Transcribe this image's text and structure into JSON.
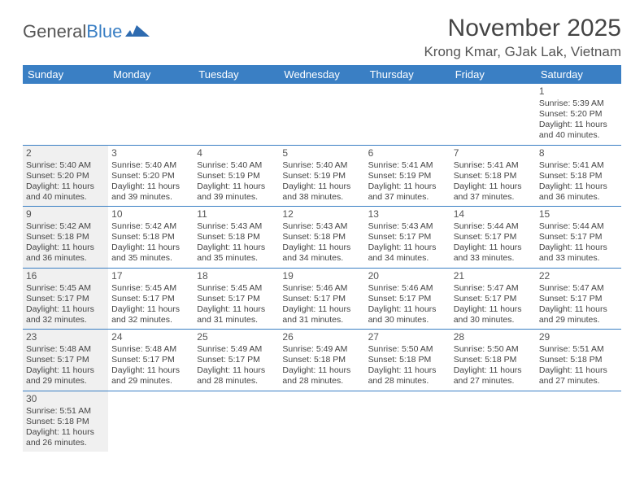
{
  "brand": {
    "part1": "General",
    "part2": "Blue"
  },
  "title": "November 2025",
  "location": "Krong Kmar, GJak Lak, Vietnam",
  "colors": {
    "header_bg": "#3a7fc4",
    "shaded_bg": "#f0f0f0",
    "text": "#444444",
    "white": "#ffffff"
  },
  "dayNames": [
    "Sunday",
    "Monday",
    "Tuesday",
    "Wednesday",
    "Thursday",
    "Friday",
    "Saturday"
  ],
  "weeks": [
    [
      {
        "empty": true
      },
      {
        "empty": true
      },
      {
        "empty": true
      },
      {
        "empty": true
      },
      {
        "empty": true
      },
      {
        "empty": true
      },
      {
        "day": "1",
        "sunrise": "Sunrise: 5:39 AM",
        "sunset": "Sunset: 5:20 PM",
        "daylight": "Daylight: 11 hours and 40 minutes."
      }
    ],
    [
      {
        "day": "2",
        "shaded": true,
        "sunrise": "Sunrise: 5:40 AM",
        "sunset": "Sunset: 5:20 PM",
        "daylight": "Daylight: 11 hours and 40 minutes."
      },
      {
        "day": "3",
        "sunrise": "Sunrise: 5:40 AM",
        "sunset": "Sunset: 5:20 PM",
        "daylight": "Daylight: 11 hours and 39 minutes."
      },
      {
        "day": "4",
        "sunrise": "Sunrise: 5:40 AM",
        "sunset": "Sunset: 5:19 PM",
        "daylight": "Daylight: 11 hours and 39 minutes."
      },
      {
        "day": "5",
        "sunrise": "Sunrise: 5:40 AM",
        "sunset": "Sunset: 5:19 PM",
        "daylight": "Daylight: 11 hours and 38 minutes."
      },
      {
        "day": "6",
        "sunrise": "Sunrise: 5:41 AM",
        "sunset": "Sunset: 5:19 PM",
        "daylight": "Daylight: 11 hours and 37 minutes."
      },
      {
        "day": "7",
        "sunrise": "Sunrise: 5:41 AM",
        "sunset": "Sunset: 5:18 PM",
        "daylight": "Daylight: 11 hours and 37 minutes."
      },
      {
        "day": "8",
        "sunrise": "Sunrise: 5:41 AM",
        "sunset": "Sunset: 5:18 PM",
        "daylight": "Daylight: 11 hours and 36 minutes."
      }
    ],
    [
      {
        "day": "9",
        "shaded": true,
        "sunrise": "Sunrise: 5:42 AM",
        "sunset": "Sunset: 5:18 PM",
        "daylight": "Daylight: 11 hours and 36 minutes."
      },
      {
        "day": "10",
        "sunrise": "Sunrise: 5:42 AM",
        "sunset": "Sunset: 5:18 PM",
        "daylight": "Daylight: 11 hours and 35 minutes."
      },
      {
        "day": "11",
        "sunrise": "Sunrise: 5:43 AM",
        "sunset": "Sunset: 5:18 PM",
        "daylight": "Daylight: 11 hours and 35 minutes."
      },
      {
        "day": "12",
        "sunrise": "Sunrise: 5:43 AM",
        "sunset": "Sunset: 5:18 PM",
        "daylight": "Daylight: 11 hours and 34 minutes."
      },
      {
        "day": "13",
        "sunrise": "Sunrise: 5:43 AM",
        "sunset": "Sunset: 5:17 PM",
        "daylight": "Daylight: 11 hours and 34 minutes."
      },
      {
        "day": "14",
        "sunrise": "Sunrise: 5:44 AM",
        "sunset": "Sunset: 5:17 PM",
        "daylight": "Daylight: 11 hours and 33 minutes."
      },
      {
        "day": "15",
        "sunrise": "Sunrise: 5:44 AM",
        "sunset": "Sunset: 5:17 PM",
        "daylight": "Daylight: 11 hours and 33 minutes."
      }
    ],
    [
      {
        "day": "16",
        "shaded": true,
        "sunrise": "Sunrise: 5:45 AM",
        "sunset": "Sunset: 5:17 PM",
        "daylight": "Daylight: 11 hours and 32 minutes."
      },
      {
        "day": "17",
        "sunrise": "Sunrise: 5:45 AM",
        "sunset": "Sunset: 5:17 PM",
        "daylight": "Daylight: 11 hours and 32 minutes."
      },
      {
        "day": "18",
        "sunrise": "Sunrise: 5:45 AM",
        "sunset": "Sunset: 5:17 PM",
        "daylight": "Daylight: 11 hours and 31 minutes."
      },
      {
        "day": "19",
        "sunrise": "Sunrise: 5:46 AM",
        "sunset": "Sunset: 5:17 PM",
        "daylight": "Daylight: 11 hours and 31 minutes."
      },
      {
        "day": "20",
        "sunrise": "Sunrise: 5:46 AM",
        "sunset": "Sunset: 5:17 PM",
        "daylight": "Daylight: 11 hours and 30 minutes."
      },
      {
        "day": "21",
        "sunrise": "Sunrise: 5:47 AM",
        "sunset": "Sunset: 5:17 PM",
        "daylight": "Daylight: 11 hours and 30 minutes."
      },
      {
        "day": "22",
        "sunrise": "Sunrise: 5:47 AM",
        "sunset": "Sunset: 5:17 PM",
        "daylight": "Daylight: 11 hours and 29 minutes."
      }
    ],
    [
      {
        "day": "23",
        "shaded": true,
        "sunrise": "Sunrise: 5:48 AM",
        "sunset": "Sunset: 5:17 PM",
        "daylight": "Daylight: 11 hours and 29 minutes."
      },
      {
        "day": "24",
        "sunrise": "Sunrise: 5:48 AM",
        "sunset": "Sunset: 5:17 PM",
        "daylight": "Daylight: 11 hours and 29 minutes."
      },
      {
        "day": "25",
        "sunrise": "Sunrise: 5:49 AM",
        "sunset": "Sunset: 5:17 PM",
        "daylight": "Daylight: 11 hours and 28 minutes."
      },
      {
        "day": "26",
        "sunrise": "Sunrise: 5:49 AM",
        "sunset": "Sunset: 5:18 PM",
        "daylight": "Daylight: 11 hours and 28 minutes."
      },
      {
        "day": "27",
        "sunrise": "Sunrise: 5:50 AM",
        "sunset": "Sunset: 5:18 PM",
        "daylight": "Daylight: 11 hours and 28 minutes."
      },
      {
        "day": "28",
        "sunrise": "Sunrise: 5:50 AM",
        "sunset": "Sunset: 5:18 PM",
        "daylight": "Daylight: 11 hours and 27 minutes."
      },
      {
        "day": "29",
        "sunrise": "Sunrise: 5:51 AM",
        "sunset": "Sunset: 5:18 PM",
        "daylight": "Daylight: 11 hours and 27 minutes."
      }
    ],
    [
      {
        "day": "30",
        "shaded": true,
        "sunrise": "Sunrise: 5:51 AM",
        "sunset": "Sunset: 5:18 PM",
        "daylight": "Daylight: 11 hours and 26 minutes."
      },
      {
        "empty": true
      },
      {
        "empty": true
      },
      {
        "empty": true
      },
      {
        "empty": true
      },
      {
        "empty": true
      },
      {
        "empty": true
      }
    ]
  ]
}
